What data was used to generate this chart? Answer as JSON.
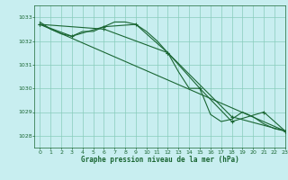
{
  "title": "Graphe pression niveau de la mer (hPa)",
  "bg_color": "#c8eef0",
  "plot_bg_color": "#c8eef0",
  "grid_color": "#88ccbb",
  "line_color": "#1a6633",
  "xlim": [
    -0.5,
    23
  ],
  "ylim": [
    1027.5,
    1033.5
  ],
  "yticks": [
    1028,
    1029,
    1030,
    1031,
    1032,
    1033
  ],
  "xticks": [
    0,
    1,
    2,
    3,
    4,
    5,
    6,
    7,
    8,
    9,
    10,
    11,
    12,
    13,
    14,
    15,
    16,
    17,
    18,
    19,
    20,
    21,
    22,
    23
  ],
  "series1_x": [
    0,
    1,
    2,
    3,
    4,
    5,
    6,
    7,
    8,
    9,
    10,
    11,
    12,
    13,
    14,
    15,
    16,
    17,
    18,
    19,
    20,
    21,
    22,
    23
  ],
  "series1_y": [
    1032.8,
    1032.5,
    1032.3,
    1032.2,
    1032.4,
    1032.4,
    1032.6,
    1032.8,
    1032.8,
    1032.7,
    1032.4,
    1032.0,
    1031.5,
    1030.7,
    1030.0,
    1030.0,
    1028.9,
    1028.6,
    1028.7,
    1029.0,
    1028.8,
    1028.5,
    1028.3,
    1028.2
  ],
  "series2_x": [
    0,
    3,
    6,
    9,
    12,
    15,
    18,
    21,
    23
  ],
  "series2_y": [
    1032.7,
    1032.2,
    1032.6,
    1032.7,
    1031.5,
    1030.0,
    1028.6,
    1029.0,
    1028.2
  ],
  "series3_x": [
    0,
    23
  ],
  "series3_y": [
    1032.7,
    1028.2
  ],
  "series4_x": [
    0,
    6,
    12,
    18,
    23
  ],
  "series4_y": [
    1032.7,
    1032.5,
    1031.5,
    1028.8,
    1028.2
  ]
}
